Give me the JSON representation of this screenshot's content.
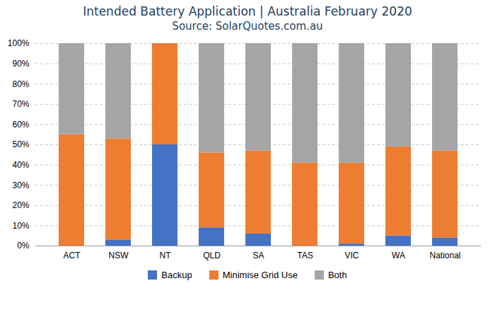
{
  "chart_data": {
    "type": "bar",
    "stacked": true,
    "title": "Intended Battery Application | Australia February 2020",
    "subtitle": "Source: SolarQuotes.com.au",
    "categories": [
      "ACT",
      "NSW",
      "NT",
      "QLD",
      "SA",
      "TAS",
      "VIC",
      "WA",
      "National"
    ],
    "series": [
      {
        "name": "Backup",
        "color": "#4472C4",
        "values": [
          0,
          3,
          50,
          9,
          6,
          0,
          1,
          5,
          4
        ]
      },
      {
        "name": "Minimise Grid Use",
        "color": "#ED7D31",
        "values": [
          55,
          50,
          50,
          37,
          41,
          41,
          40,
          44,
          43
        ]
      },
      {
        "name": "Both",
        "color": "#A5A5A5",
        "values": [
          45,
          47,
          0,
          54,
          53,
          59,
          59,
          51,
          53
        ]
      }
    ],
    "ylim": [
      0,
      100
    ],
    "yticks": [
      {
        "value": 0,
        "label": "0%"
      },
      {
        "value": 10,
        "label": "10%"
      },
      {
        "value": 20,
        "label": "20%"
      },
      {
        "value": 30,
        "label": "30%"
      },
      {
        "value": 40,
        "label": "40%"
      },
      {
        "value": 50,
        "label": "50%"
      },
      {
        "value": 60,
        "label": "60%"
      },
      {
        "value": 70,
        "label": "70%"
      },
      {
        "value": 80,
        "label": "80%"
      },
      {
        "value": 90,
        "label": "90%"
      },
      {
        "value": 100,
        "label": "100%"
      }
    ],
    "grid": true,
    "legend": "bottom"
  }
}
